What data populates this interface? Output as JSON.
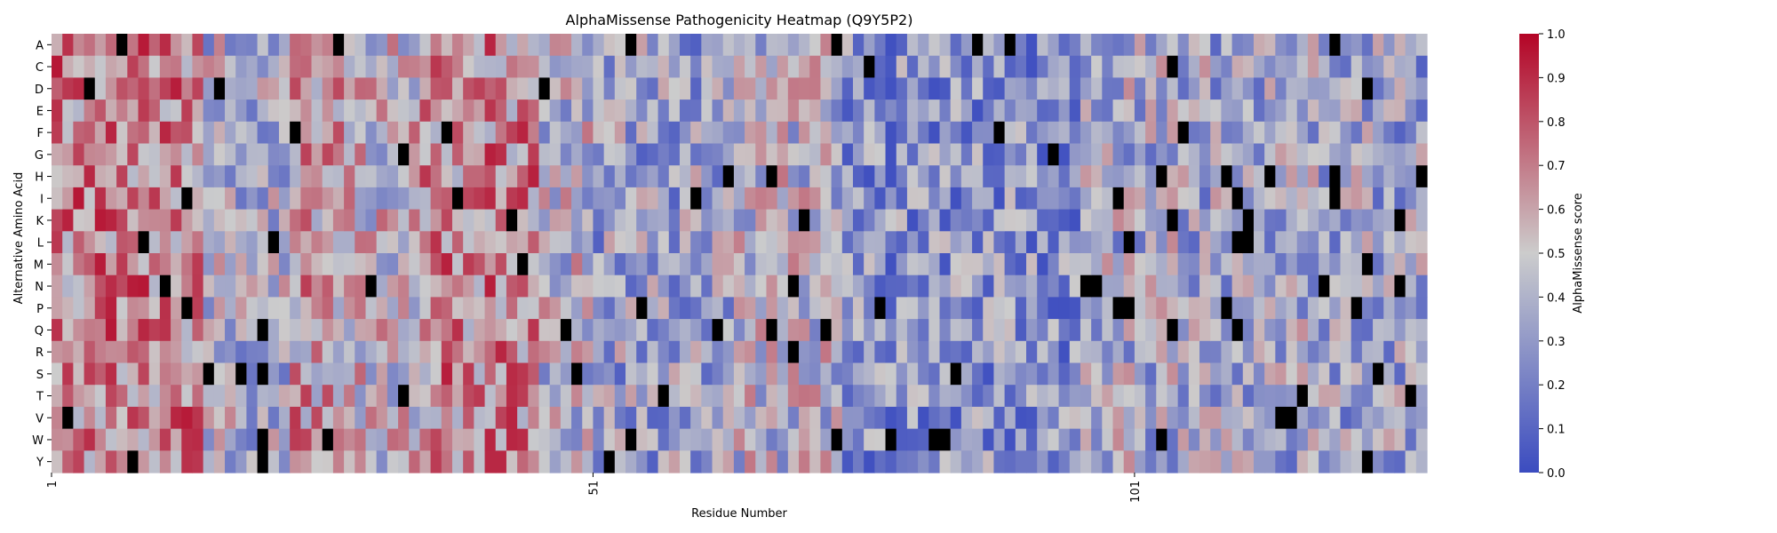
{
  "chart_data": {
    "type": "heatmap",
    "title": "AlphaMissense Pathogenicity Heatmap (Q9Y5P2)",
    "xlabel": "Residue Number",
    "ylabel": "Alternative Amino Acid",
    "rows": [
      "A",
      "C",
      "D",
      "E",
      "F",
      "G",
      "H",
      "I",
      "K",
      "L",
      "M",
      "N",
      "P",
      "Q",
      "R",
      "S",
      "T",
      "V",
      "W",
      "Y"
    ],
    "x_range": [
      1,
      127
    ],
    "x_ticks": [
      "1",
      "51",
      "101"
    ],
    "colorbar": {
      "label": "AlphaMissense score",
      "range": [
        0.0,
        1.0
      ],
      "ticks": [
        "0.0",
        "0.1",
        "0.2",
        "0.3",
        "0.4",
        "0.5",
        "0.6",
        "0.7",
        "0.8",
        "0.9",
        "1.0"
      ],
      "colors": [
        "#3b4cc0",
        "#cccccc",
        "#b40426"
      ]
    },
    "missing_color": "#000000",
    "region_means": [
      {
        "from": 1,
        "to": 14,
        "mean": 0.68
      },
      {
        "from": 15,
        "to": 22,
        "mean": 0.42
      },
      {
        "from": 23,
        "to": 27,
        "mean": 0.6
      },
      {
        "from": 28,
        "to": 34,
        "mean": 0.5
      },
      {
        "from": 35,
        "to": 45,
        "mean": 0.66
      },
      {
        "from": 46,
        "to": 50,
        "mean": 0.45
      },
      {
        "from": 51,
        "to": 63,
        "mean": 0.35
      },
      {
        "from": 64,
        "to": 73,
        "mean": 0.45
      },
      {
        "from": 74,
        "to": 95,
        "mean": 0.27
      },
      {
        "from": 96,
        "to": 104,
        "mean": 0.4
      },
      {
        "from": 105,
        "to": 118,
        "mean": 0.38
      },
      {
        "from": 119,
        "to": 127,
        "mean": 0.36
      }
    ]
  }
}
